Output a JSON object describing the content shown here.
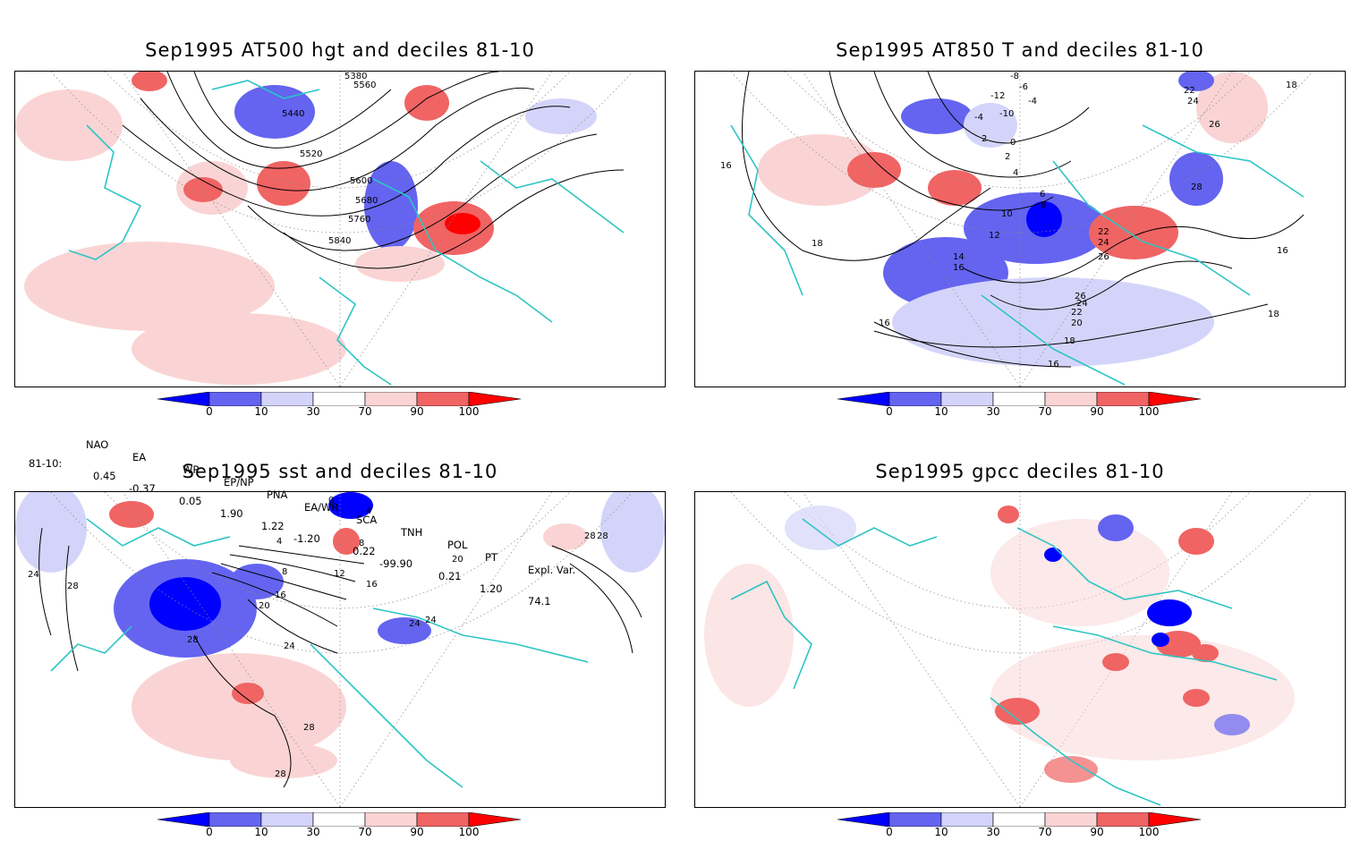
{
  "panels": [
    {
      "title": "Sep1995 AT500 hgt and deciles 81-10",
      "contour_labels": [
        "5380",
        "5560",
        "5440",
        "5520",
        "5600",
        "5680",
        "5760",
        "5840"
      ]
    },
    {
      "title": "Sep1995 AT850 T and deciles 81-10",
      "contour_labels": [
        "-8",
        "-6",
        "-12",
        "-4",
        "-10",
        "-4",
        "2",
        "0",
        "2",
        "4",
        "6",
        "8",
        "10",
        "12",
        "14",
        "16",
        "16",
        "18",
        "22",
        "24",
        "26",
        "26",
        "24",
        "22",
        "20",
        "18",
        "16",
        "16",
        "18",
        "28",
        "26",
        "22",
        "24",
        "16",
        "18"
      ]
    },
    {
      "title": "Sep1995 sst and deciles 81-10",
      "contour_labels": [
        "24",
        "28",
        "4",
        "8",
        "12",
        "16",
        "20",
        "24",
        "28",
        "28",
        "28",
        "8",
        "16",
        "24",
        "24",
        "20",
        "28",
        "28",
        "0",
        "4"
      ]
    },
    {
      "title": "Sep1995 gpcc deciles 81-10",
      "contour_labels": []
    }
  ],
  "colorbar": {
    "labels": [
      "0",
      "10",
      "30",
      "70",
      "90",
      "100"
    ],
    "colors": [
      "#0000ff",
      "#6464f0",
      "#d4d4fa",
      "#ffffff",
      "#fad4d4",
      "#f06464",
      "#ff0000"
    ]
  },
  "indices": {
    "headers": [
      "NAO",
      "EA",
      "WP",
      "EP/NP",
      "PNA",
      "EA/WR",
      "SCA",
      "TNH",
      "POL",
      "PT",
      "Expl. Var."
    ],
    "row_label": "81-10:",
    "values": [
      "0.45",
      "-0.37",
      "0.05",
      "1.90",
      "1.22",
      "-1.20",
      "0.22",
      "-99.90",
      "0.21",
      "1.20",
      "74.1"
    ]
  },
  "colors": {
    "coast": "#2ec4c4",
    "contour": "#000000"
  }
}
